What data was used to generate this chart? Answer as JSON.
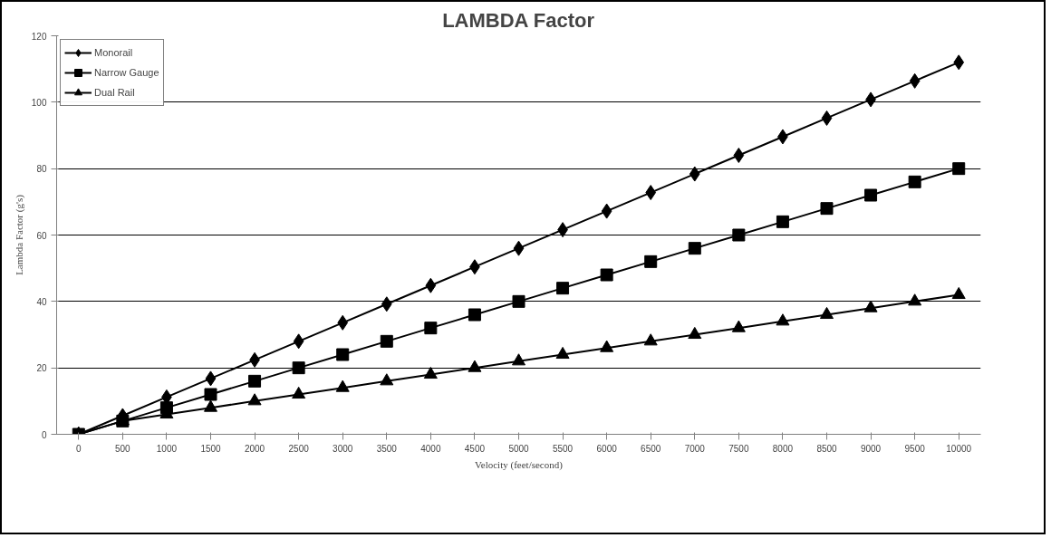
{
  "chart_data": {
    "type": "line",
    "title": "LAMBDA Factor",
    "xlabel": "Velocity (feet/second)",
    "ylabel": "Lambda Factor (g's)",
    "categories": [
      "0",
      "500",
      "1000",
      "1500",
      "2000",
      "2500",
      "3000",
      "3500",
      "4000",
      "4500",
      "5000",
      "5500",
      "6000",
      "6500",
      "7000",
      "7500",
      "8000",
      "8500",
      "9000",
      "9500",
      "10000"
    ],
    "series": [
      {
        "name": "Monorail",
        "color": "#000000",
        "marker": "diamond",
        "values": [
          0,
          5.6,
          11.2,
          16.8,
          22.4,
          28,
          33.6,
          39.2,
          44.8,
          50.4,
          56,
          61.6,
          67.2,
          72.8,
          78.4,
          84,
          89.6,
          95.2,
          100.8,
          106.4,
          112
        ]
      },
      {
        "name": "Narrow Gauge",
        "color": "#000000",
        "marker": "square",
        "values": [
          0,
          4,
          8,
          12,
          16,
          20,
          24,
          28,
          32,
          36,
          40,
          44,
          48,
          52,
          56,
          60,
          64,
          68,
          72,
          76,
          80
        ]
      },
      {
        "name": "Dual Rail",
        "color": "#000000",
        "marker": "triangle",
        "values": [
          0,
          4,
          6,
          8,
          10,
          12,
          14,
          16,
          18,
          20,
          22,
          24,
          26,
          28,
          30,
          32,
          34,
          36,
          38,
          40,
          42
        ]
      }
    ],
    "ylim": [
      0,
      120
    ],
    "yticks": [
      0,
      20,
      40,
      60,
      80,
      100,
      120
    ],
    "grid": "y",
    "legend": "top left",
    "line_style": "solid"
  }
}
